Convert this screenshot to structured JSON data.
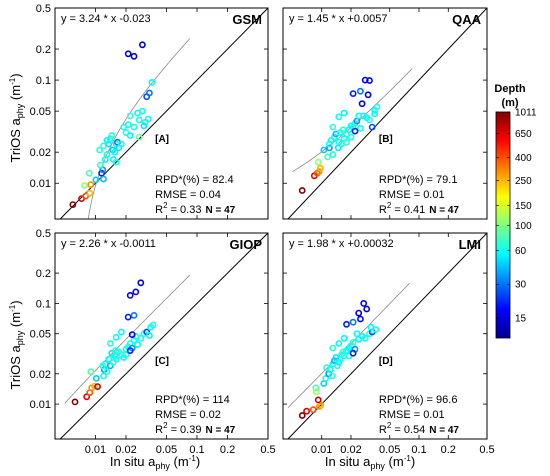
{
  "figure": {
    "y_axis_label": "TriOS a",
    "y_axis_sub": "phy",
    "y_axis_unit": "(m",
    "y_axis_unit_exp": "-1",
    "y_axis_unit_close": ")",
    "x_axis_label": "In situ a",
    "x_axis_sub": "phy",
    "x_axis_unit": "(m",
    "x_axis_unit_exp": "-1",
    "x_axis_unit_close": ")"
  },
  "colorbar": {
    "title_line1": "Depth",
    "title_line2": "(m)",
    "ticks": [
      15,
      30,
      60,
      100,
      150,
      250,
      400,
      650,
      1011
    ],
    "colormap": "jet",
    "scale": "log"
  },
  "chart_data": [
    {
      "type": "scatter",
      "panel_id": "[A]",
      "title": "GSM",
      "equation": "y = 3.24 * x -0.023",
      "stats": {
        "rpd": "RPD*(%) = 82.4",
        "rmse": "RMSE = 0.04",
        "r2_prefix": "R",
        "r2_exp": "2",
        "r2_value": " = 0.33",
        "n": "N = 47"
      },
      "x_scale": "log",
      "y_scale": "log",
      "xlim": [
        0.004,
        0.5
      ],
      "ylim": [
        0.0045,
        0.5
      ],
      "x_ticks": [
        "0.01",
        "0.02",
        "0.05",
        "0.1",
        "0.2",
        "0.5"
      ],
      "y_ticks": [
        "0.01",
        "0.02",
        "0.05",
        "0.1",
        "0.2",
        "0.5"
      ],
      "one_to_one_line": true,
      "fit": {
        "slope": 3.24,
        "intercept": -0.023,
        "x_range": [
          0.0085,
          0.085
        ]
      },
      "points": [
        [
          0.006,
          0.0062,
          1011
        ],
        [
          0.0073,
          0.0071,
          650
        ],
        [
          0.008,
          0.0075,
          400
        ],
        [
          0.0088,
          0.008,
          250
        ],
        [
          0.009,
          0.0097,
          300
        ],
        [
          0.0087,
          0.0125,
          80
        ],
        [
          0.0078,
          0.0095,
          110
        ],
        [
          0.0101,
          0.0108,
          45
        ],
        [
          0.0115,
          0.0125,
          20
        ],
        [
          0.0118,
          0.0135,
          35
        ],
        [
          0.012,
          0.011,
          40
        ],
        [
          0.0112,
          0.015,
          70
        ],
        [
          0.0125,
          0.017,
          55
        ],
        [
          0.013,
          0.019,
          60
        ],
        [
          0.011,
          0.021,
          65
        ],
        [
          0.012,
          0.023,
          70
        ],
        [
          0.0135,
          0.024,
          50
        ],
        [
          0.013,
          0.026,
          55
        ],
        [
          0.014,
          0.027,
          60
        ],
        [
          0.0148,
          0.021,
          45
        ],
        [
          0.0155,
          0.02,
          55
        ],
        [
          0.016,
          0.024,
          60
        ],
        [
          0.0165,
          0.025,
          30
        ],
        [
          0.017,
          0.022,
          50
        ],
        [
          0.018,
          0.024,
          60
        ],
        [
          0.015,
          0.017,
          55
        ],
        [
          0.016,
          0.016,
          65
        ],
        [
          0.0145,
          0.029,
          70
        ],
        [
          0.02,
          0.031,
          65
        ],
        [
          0.019,
          0.035,
          60
        ],
        [
          0.022,
          0.029,
          55
        ],
        [
          0.021,
          0.037,
          60
        ],
        [
          0.024,
          0.035,
          65
        ],
        [
          0.022,
          0.045,
          70
        ],
        [
          0.027,
          0.041,
          60
        ],
        [
          0.026,
          0.048,
          55
        ],
        [
          0.029,
          0.05,
          60
        ],
        [
          0.031,
          0.039,
          65
        ],
        [
          0.033,
          0.042,
          60
        ],
        [
          0.03,
          0.036,
          50
        ],
        [
          0.032,
          0.069,
          25
        ],
        [
          0.034,
          0.075,
          30
        ],
        [
          0.036,
          0.095,
          55
        ],
        [
          0.027,
          0.028,
          90
        ],
        [
          0.021,
          0.18,
          18
        ],
        [
          0.024,
          0.17,
          15
        ],
        [
          0.029,
          0.22,
          15
        ]
      ]
    },
    {
      "type": "scatter",
      "panel_id": "[B]",
      "title": "QAA",
      "equation": "y = 1.45 * x +0.0057",
      "stats": {
        "rpd": "RPD*(%) = 79.1",
        "rmse": "RMSE = 0.01",
        "r2_prefix": "R",
        "r2_exp": "2",
        "r2_value": " = 0.41",
        "n": "N = 47"
      },
      "x_scale": "log",
      "y_scale": "log",
      "xlim": [
        0.004,
        0.5
      ],
      "ylim": [
        0.0045,
        0.5
      ],
      "x_ticks": [
        "0.01",
        "0.02",
        "0.05",
        "0.1",
        "0.2",
        "0.5"
      ],
      "y_ticks": [
        "0.01",
        "0.02",
        "0.05",
        "0.1",
        "0.2",
        "0.5"
      ],
      "one_to_one_line": true,
      "fit": {
        "slope": 1.45,
        "intercept": 0.0057,
        "x_range": [
          0.005,
          0.085
        ]
      },
      "points": [
        [
          0.0063,
          0.0085,
          1011
        ],
        [
          0.0084,
          0.0118,
          650
        ],
        [
          0.009,
          0.0125,
          400
        ],
        [
          0.0094,
          0.013,
          300
        ],
        [
          0.0097,
          0.014,
          250
        ],
        [
          0.0115,
          0.018,
          80
        ],
        [
          0.0092,
          0.016,
          110
        ],
        [
          0.0105,
          0.021,
          45
        ],
        [
          0.012,
          0.022,
          35
        ],
        [
          0.012,
          0.024,
          60
        ],
        [
          0.0125,
          0.026,
          55
        ],
        [
          0.013,
          0.019,
          65
        ],
        [
          0.0135,
          0.028,
          60
        ],
        [
          0.014,
          0.03,
          40
        ],
        [
          0.0148,
          0.022,
          50
        ],
        [
          0.015,
          0.025,
          65
        ],
        [
          0.016,
          0.024,
          55
        ],
        [
          0.017,
          0.027,
          60
        ],
        [
          0.0155,
          0.031,
          60
        ],
        [
          0.0165,
          0.033,
          70
        ],
        [
          0.018,
          0.03,
          65
        ],
        [
          0.019,
          0.033,
          60
        ],
        [
          0.02,
          0.036,
          55
        ],
        [
          0.021,
          0.035,
          60
        ],
        [
          0.022,
          0.038,
          65
        ],
        [
          0.023,
          0.04,
          35
        ],
        [
          0.025,
          0.034,
          60
        ],
        [
          0.027,
          0.045,
          55
        ],
        [
          0.029,
          0.043,
          60
        ],
        [
          0.031,
          0.041,
          65
        ],
        [
          0.033,
          0.035,
          25
        ],
        [
          0.035,
          0.051,
          60
        ],
        [
          0.037,
          0.055,
          65
        ],
        [
          0.013,
          0.035,
          70
        ],
        [
          0.015,
          0.044,
          60
        ],
        [
          0.017,
          0.048,
          55
        ],
        [
          0.024,
          0.045,
          60
        ],
        [
          0.02,
          0.028,
          60
        ],
        [
          0.022,
          0.032,
          20
        ],
        [
          0.018,
          0.025,
          70
        ],
        [
          0.021,
          0.074,
          20
        ],
        [
          0.025,
          0.078,
          30
        ],
        [
          0.028,
          0.1,
          15
        ],
        [
          0.031,
          0.099,
          18
        ],
        [
          0.03,
          0.072,
          15
        ],
        [
          0.026,
          0.059,
          18
        ],
        [
          0.035,
          0.047,
          55
        ]
      ]
    },
    {
      "type": "scatter",
      "panel_id": "[C]",
      "title": "GIOP",
      "equation": "y = 2.26 * x -0.0011",
      "stats": {
        "rpd": "RPD*(%) = 114",
        "rmse": "RMSE = 0.02",
        "r2_prefix": "R",
        "r2_exp": "2",
        "r2_value": " = 0.39",
        "n": "N = 47"
      },
      "x_scale": "log",
      "y_scale": "log",
      "xlim": [
        0.004,
        0.5
      ],
      "ylim": [
        0.0045,
        0.5
      ],
      "x_ticks": [
        "0.01",
        "0.02",
        "0.05",
        "0.1",
        "0.2",
        "0.5"
      ],
      "y_ticks": [
        "0.01",
        "0.02",
        "0.05",
        "0.1",
        "0.2",
        "0.5"
      ],
      "one_to_one_line": true,
      "fit": {
        "slope": 2.26,
        "intercept": -0.0011,
        "x_range": [
          0.005,
          0.085
        ]
      },
      "points": [
        [
          0.0063,
          0.0105,
          1011
        ],
        [
          0.0082,
          0.0118,
          650
        ],
        [
          0.0088,
          0.013,
          400
        ],
        [
          0.0092,
          0.0145,
          300
        ],
        [
          0.0098,
          0.0151,
          250
        ],
        [
          0.009,
          0.021,
          80
        ],
        [
          0.0105,
          0.0149,
          700
        ],
        [
          0.0102,
          0.018,
          45
        ],
        [
          0.012,
          0.019,
          60
        ],
        [
          0.0122,
          0.022,
          35
        ],
        [
          0.0125,
          0.025,
          55
        ],
        [
          0.013,
          0.021,
          65
        ],
        [
          0.0135,
          0.028,
          60
        ],
        [
          0.014,
          0.024,
          40
        ],
        [
          0.0145,
          0.032,
          50
        ],
        [
          0.015,
          0.026,
          65
        ],
        [
          0.0155,
          0.03,
          55
        ],
        [
          0.016,
          0.028,
          60
        ],
        [
          0.0158,
          0.034,
          60
        ],
        [
          0.017,
          0.033,
          70
        ],
        [
          0.018,
          0.031,
          65
        ],
        [
          0.019,
          0.029,
          60
        ],
        [
          0.02,
          0.035,
          55
        ],
        [
          0.021,
          0.037,
          60
        ],
        [
          0.022,
          0.04,
          65
        ],
        [
          0.023,
          0.036,
          35
        ],
        [
          0.024,
          0.043,
          60
        ],
        [
          0.026,
          0.039,
          55
        ],
        [
          0.028,
          0.045,
          60
        ],
        [
          0.03,
          0.05,
          65
        ],
        [
          0.032,
          0.052,
          25
        ],
        [
          0.035,
          0.058,
          60
        ],
        [
          0.037,
          0.061,
          65
        ],
        [
          0.014,
          0.04,
          70
        ],
        [
          0.016,
          0.046,
          60
        ],
        [
          0.018,
          0.052,
          55
        ],
        [
          0.025,
          0.047,
          60
        ],
        [
          0.02,
          0.031,
          60
        ],
        [
          0.022,
          0.034,
          20
        ],
        [
          0.0118,
          0.024,
          70
        ],
        [
          0.021,
          0.073,
          20
        ],
        [
          0.024,
          0.076,
          30
        ],
        [
          0.022,
          0.12,
          15
        ],
        [
          0.025,
          0.13,
          18
        ],
        [
          0.028,
          0.16,
          15
        ],
        [
          0.023,
          0.049,
          18
        ],
        [
          0.034,
          0.048,
          55
        ]
      ]
    },
    {
      "type": "scatter",
      "panel_id": "[D]",
      "title": "LMI",
      "equation": "y = 1.98 * x +0.00032",
      "stats": {
        "rpd": "RPD*(%) = 96.6",
        "rmse": "RMSE = 0.01",
        "r2_prefix": "R",
        "r2_exp": "2",
        "r2_value": " = 0.54",
        "n": "N = 47"
      },
      "x_scale": "log",
      "y_scale": "log",
      "xlim": [
        0.004,
        0.5
      ],
      "ylim": [
        0.0045,
        0.5
      ],
      "x_ticks": [
        "0.01",
        "0.02",
        "0.05",
        "0.1",
        "0.2",
        "0.5"
      ],
      "y_ticks": [
        "0.01",
        "0.02",
        "0.05",
        "0.1",
        "0.2",
        "0.5"
      ],
      "one_to_one_line": true,
      "fit": {
        "slope": 1.98,
        "intercept": 0.00032,
        "x_range": [
          0.0045,
          0.08
        ]
      },
      "points": [
        [
          0.0063,
          0.0077,
          1011
        ],
        [
          0.007,
          0.0085,
          650
        ],
        [
          0.0082,
          0.0088,
          400
        ],
        [
          0.0095,
          0.0095,
          300
        ],
        [
          0.0098,
          0.0098,
          250
        ],
        [
          0.0087,
          0.0145,
          80
        ],
        [
          0.0088,
          0.0132,
          110
        ],
        [
          0.0092,
          0.011,
          700
        ],
        [
          0.0105,
          0.016,
          45
        ],
        [
          0.011,
          0.018,
          60
        ],
        [
          0.0118,
          0.02,
          35
        ],
        [
          0.0122,
          0.022,
          55
        ],
        [
          0.0128,
          0.019,
          65
        ],
        [
          0.013,
          0.025,
          60
        ],
        [
          0.0135,
          0.027,
          40
        ],
        [
          0.014,
          0.029,
          50
        ],
        [
          0.0145,
          0.024,
          65
        ],
        [
          0.015,
          0.026,
          55
        ],
        [
          0.0155,
          0.028,
          60
        ],
        [
          0.016,
          0.031,
          60
        ],
        [
          0.0165,
          0.033,
          70
        ],
        [
          0.017,
          0.03,
          65
        ],
        [
          0.018,
          0.034,
          60
        ],
        [
          0.019,
          0.036,
          55
        ],
        [
          0.02,
          0.038,
          60
        ],
        [
          0.021,
          0.041,
          65
        ],
        [
          0.022,
          0.035,
          35
        ],
        [
          0.024,
          0.044,
          60
        ],
        [
          0.026,
          0.047,
          55
        ],
        [
          0.028,
          0.045,
          60
        ],
        [
          0.031,
          0.05,
          65
        ],
        [
          0.033,
          0.052,
          25
        ],
        [
          0.036,
          0.055,
          60
        ],
        [
          0.013,
          0.036,
          70
        ],
        [
          0.015,
          0.04,
          60
        ],
        [
          0.017,
          0.045,
          55
        ],
        [
          0.023,
          0.05,
          60
        ],
        [
          0.019,
          0.03,
          60
        ],
        [
          0.021,
          0.032,
          20
        ],
        [
          0.0112,
          0.023,
          70
        ],
        [
          0.018,
          0.062,
          20
        ],
        [
          0.021,
          0.065,
          30
        ],
        [
          0.024,
          0.08,
          15
        ],
        [
          0.027,
          0.1,
          18
        ],
        [
          0.029,
          0.088,
          15
        ],
        [
          0.025,
          0.07,
          18
        ],
        [
          0.032,
          0.058,
          55
        ]
      ]
    }
  ]
}
